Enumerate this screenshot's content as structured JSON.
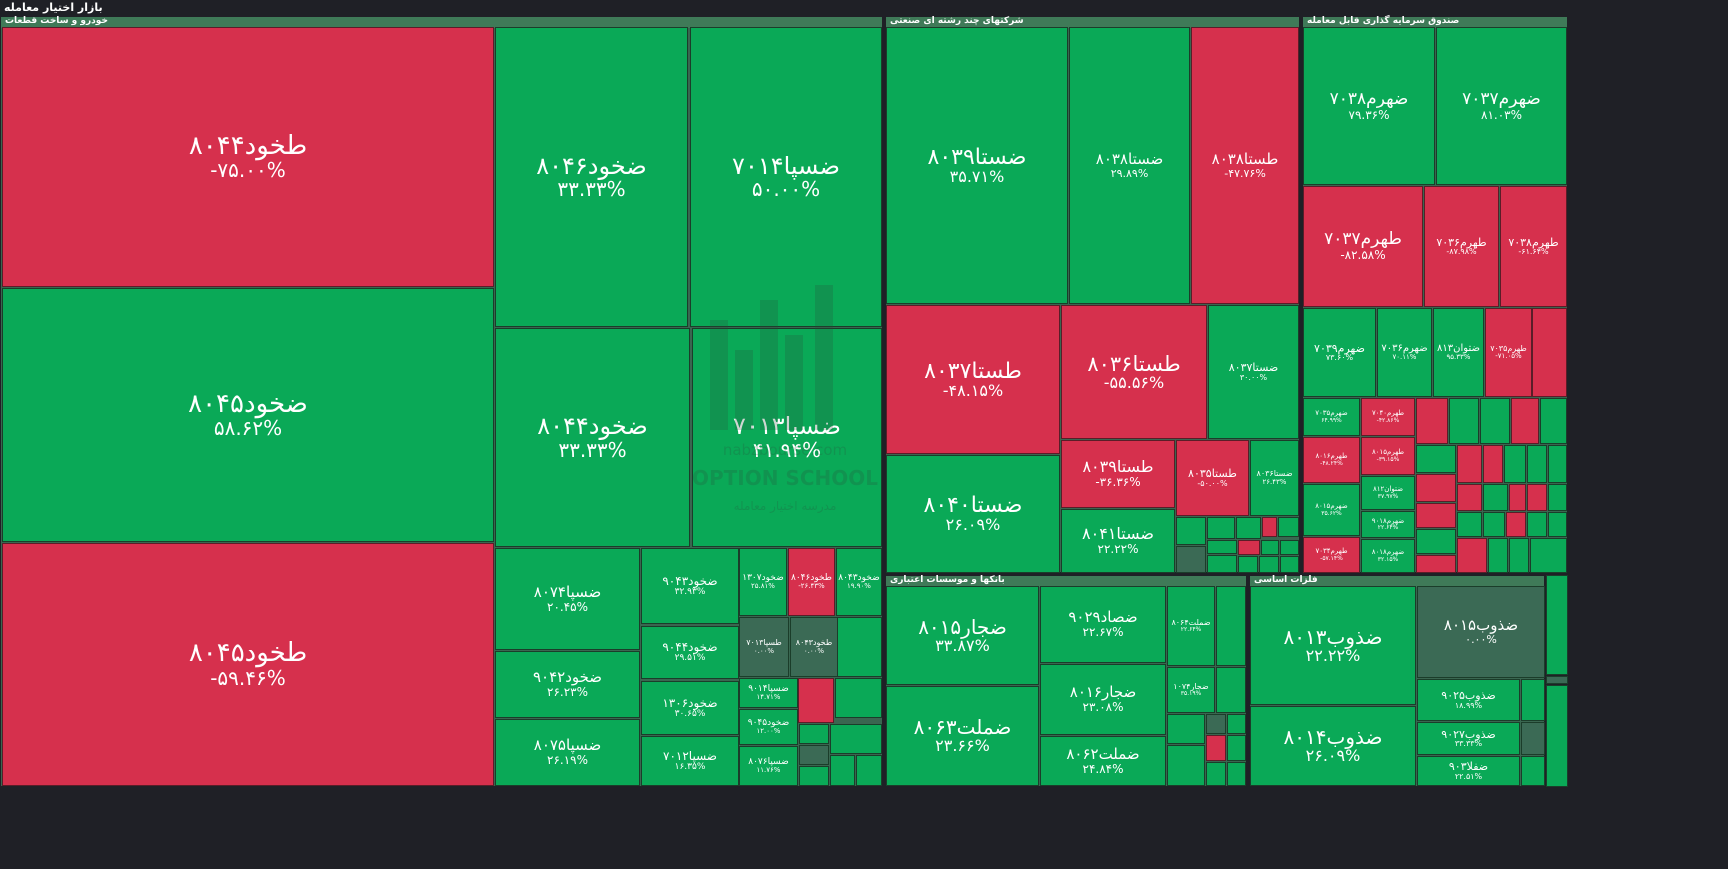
{
  "title": "بازار اختیار معامله",
  "colors": {
    "up": "#0aa957",
    "down": "#d6304d",
    "neutral": "#3b6a55"
  },
  "watermark": {
    "name": "nabzbourse.com",
    "brand": "OPTION SCHOOL",
    "tag": "مدرسه اختیار معامله"
  },
  "sectors": [
    {
      "name": "خودرو و ساخت قطعات",
      "cells": [
        {
          "s": "طخود۸۰۴۴",
          "p": "-۷۵.۰۰%",
          "c": "r"
        },
        {
          "s": "ضخود۸۰۴۵",
          "p": "۵۸.۶۲%",
          "c": "g"
        },
        {
          "s": "طخود۸۰۴۵",
          "p": "-۵۹.۴۶%",
          "c": "r"
        },
        {
          "s": "ضخود۸۰۴۶",
          "p": "۳۳.۳۳%",
          "c": "g"
        },
        {
          "s": "ضسپا۷۰۱۴",
          "p": "۵۰.۰۰%",
          "c": "g"
        },
        {
          "s": "ضخود۸۰۴۴",
          "p": "۳۳.۳۳%",
          "c": "g"
        },
        {
          "s": "ضسپا۷۰۱۳",
          "p": "۴۱.۹۴%",
          "c": "g"
        },
        {
          "s": "ضسپا۸۰۷۴",
          "p": "۲۰.۴۵%",
          "c": "g"
        },
        {
          "s": "ضخود۹۰۴۲",
          "p": "۲۶.۲۳%",
          "c": "g"
        },
        {
          "s": "ضسپا۸۰۷۵",
          "p": "۲۶.۱۹%",
          "c": "g"
        },
        {
          "s": "ضخود۹۰۴۳",
          "p": "۳۲.۹۳%",
          "c": "g"
        },
        {
          "s": "ضخود۹۰۴۴",
          "p": "۲۹.۵۱%",
          "c": "g"
        },
        {
          "s": "ضخود۱۳۰۶",
          "p": "۳۰.۶۵%",
          "c": "g"
        },
        {
          "s": "ضسپا۷۰۱۲",
          "p": "۱۶.۳۵%",
          "c": "g"
        },
        {
          "s": "ضخود۱۳۰۷",
          "p": "۲۵.۸۱%",
          "c": "g"
        },
        {
          "s": "طخود۸۰۴۶",
          "p": "-۲۶.۴۳%",
          "c": "r"
        },
        {
          "s": "ضخود۸۰۴۳",
          "p": "۱۹.۹۰%",
          "c": "g"
        },
        {
          "s": "طسپا۷۰۱۳",
          "p": "۰.۰۰%",
          "c": "n"
        },
        {
          "s": "طخود۸۰۴۳",
          "p": "۰.۰۰%",
          "c": "n"
        },
        {
          "s": "ضسپا۹۰۱۴",
          "p": "۱۴.۷۱%",
          "c": "g"
        },
        {
          "s": "ضخود۹۰۴۵",
          "p": "۱۲.۰۰%",
          "c": "g"
        },
        {
          "s": "ضسپا۸۰۷۶",
          "p": "۱۱.۷۶%",
          "c": "g"
        }
      ]
    },
    {
      "name": "شرکتهای چند رشته ای صنعتی",
      "cells": [
        {
          "s": "ضستا۸۰۳۹",
          "p": "۳۵.۷۱%",
          "c": "g"
        },
        {
          "s": "ضستا۸۰۳۸",
          "p": "۲۹.۸۹%",
          "c": "g"
        },
        {
          "s": "طستا۸۰۳۸",
          "p": "-۴۷.۷۶%",
          "c": "r"
        },
        {
          "s": "طستا۸۰۳۷",
          "p": "-۴۸.۱۵%",
          "c": "r"
        },
        {
          "s": "طستا۸۰۳۶",
          "p": "-۵۵.۵۶%",
          "c": "r"
        },
        {
          "s": "ضستا۸۰۳۷",
          "p": "۳۰.۰۰%",
          "c": "g"
        },
        {
          "s": "ضستا۸۰۴۰",
          "p": "۲۶.۰۹%",
          "c": "g"
        },
        {
          "s": "طستا۸۰۳۹",
          "p": "-۳۶.۳۶%",
          "c": "r"
        },
        {
          "s": "طستا۸۰۳۵",
          "p": "-۵۰.۰۰%",
          "c": "r"
        },
        {
          "s": "ضستا۸۰۳۶",
          "p": "۲۶.۴۳%",
          "c": "g"
        },
        {
          "s": "ضستا۸۰۴۱",
          "p": "۲۲.۲۲%",
          "c": "g"
        }
      ]
    },
    {
      "name": "صندوق سرمایه گذاری قابل معامله",
      "cells": [
        {
          "s": "ضهرم۷۰۳۸",
          "p": "۷۹.۳۶%",
          "c": "g"
        },
        {
          "s": "ضهرم۷۰۳۷",
          "p": "۸۱.۰۳%",
          "c": "g"
        },
        {
          "s": "طهرم۷۰۳۷",
          "p": "-۸۲.۵۸%",
          "c": "r"
        },
        {
          "s": "طهرم۷۰۳۶",
          "p": "-۸۷.۹۸%",
          "c": "r"
        },
        {
          "s": "طهرم۷۰۳۸",
          "p": "-۶۱.۶۴%",
          "c": "r"
        },
        {
          "s": "ضهرم۷۰۳۹",
          "p": "۷۳.۶۰%",
          "c": "g"
        },
        {
          "s": "ضهرم۷۰۳۶",
          "p": "۷۰.۱۱%",
          "c": "g"
        },
        {
          "s": "ضتوان۸۱۳",
          "p": "۹۵.۳۳%",
          "c": "g"
        },
        {
          "s": "طهرم۷۰۳۵",
          "p": "-۷۱.۰۵%",
          "c": "r"
        },
        {
          "s": "ضهرم۷۰۳۵",
          "p": "۶۴.۹۹%",
          "c": "g"
        },
        {
          "s": "طهرم۷۰۴۰",
          "p": "-۴۲.۸۶%",
          "c": "r"
        },
        {
          "s": "طهرم۸۰۱۶",
          "p": "-۴۸.۲۴%",
          "c": "r"
        },
        {
          "s": "طهرم۸۰۱۵",
          "p": "-۳۹.۱۵%",
          "c": "r"
        },
        {
          "s": "ضتوان۸۱۲",
          "p": "۳۷.۹۷%",
          "c": "g"
        },
        {
          "s": "ضهرم۸۰۱۵",
          "p": "۳۵.۶۲%",
          "c": "g"
        },
        {
          "s": "ضهرم۹۰۱۸",
          "p": "۲۲.۶۴%",
          "c": "g"
        },
        {
          "s": "طهرم۷۰۳۴",
          "p": "-۵۷.۱۴%",
          "c": "r"
        },
        {
          "s": "ضهرم۸۰۱۸",
          "p": "۳۲.۱۵%",
          "c": "g"
        }
      ]
    },
    {
      "name": "بانکها و موسسات اعتباری",
      "cells": [
        {
          "s": "ضجار۸۰۱۵",
          "p": "۳۳.۸۷%",
          "c": "g"
        },
        {
          "s": "ضصاد۹۰۲۹",
          "p": "۲۲.۶۷%",
          "c": "g"
        },
        {
          "s": "ضملت۸۰۶۳",
          "p": "۲۳.۶۶%",
          "c": "g"
        },
        {
          "s": "ضجار۸۰۱۶",
          "p": "۲۳.۰۸%",
          "c": "g"
        },
        {
          "s": "ضملت۸۰۶۲",
          "p": "۲۴.۸۴%",
          "c": "g"
        },
        {
          "s": "ضملت۸۰۶۴",
          "p": "۲۲.۶۴%",
          "c": "g"
        },
        {
          "s": "ضجار۱۰۷۴",
          "p": "۳۵.۱۹%",
          "c": "g"
        }
      ]
    },
    {
      "name": "فلزات اساسی",
      "cells": [
        {
          "s": "ضذوب۸۰۱۳",
          "p": "۲۲.۲۲%",
          "c": "g"
        },
        {
          "s": "ضذوب۸۰۱۵",
          "p": "۰.۰۰%",
          "c": "n"
        },
        {
          "s": "ضذوب۸۰۱۴",
          "p": "۲۶.۰۹%",
          "c": "g"
        },
        {
          "s": "ضذوب۹۰۲۵",
          "p": "۱۸.۹۹%",
          "c": "g"
        },
        {
          "s": "ضذوب۹۰۲۷",
          "p": "۳۳.۳۳%",
          "c": "g"
        },
        {
          "s": "ضفلا۹۰۳",
          "p": "۲۲.۵۱%",
          "c": "g"
        }
      ]
    }
  ]
}
